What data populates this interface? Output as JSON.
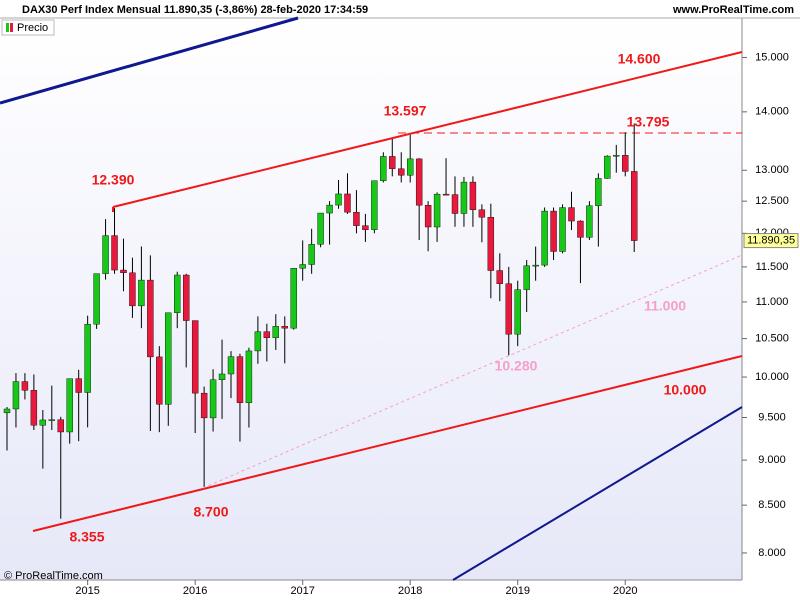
{
  "chart_data": {
    "type": "candlestick",
    "title": "DAX30 Perf Index Mensual 11.890,35 (-3,86%) 28-feb-2020 17:34:59",
    "source": "www.ProRealTime.com",
    "copyright": "© ProRealTime.com",
    "last_price_label": "11.890,35",
    "log_scale": true,
    "up_color": "#18c818",
    "down_color": "#e8193c",
    "categories": [
      null,
      null,
      null,
      null,
      null,
      null,
      null,
      null,
      null,
      "2015",
      null,
      null,
      null,
      null,
      null,
      null,
      null,
      null,
      null,
      null,
      null,
      "2016",
      null,
      null,
      null,
      null,
      null,
      null,
      null,
      null,
      null,
      null,
      null,
      "2017",
      null,
      null,
      null,
      null,
      null,
      null,
      null,
      null,
      null,
      null,
      null,
      "2018",
      null,
      null,
      null,
      null,
      null,
      null,
      null,
      null,
      null,
      null,
      null,
      "2019",
      null,
      null,
      null,
      null,
      null,
      null,
      null,
      null,
      null,
      null,
      null,
      "2020",
      null
    ],
    "series": [
      {
        "name": "Precio",
        "open": [
          9556,
          9603,
          9943,
          9833,
          9407,
          9470,
          9474,
          9327,
          9980,
          9806,
          10694,
          11402,
          11966,
          11454,
          11414,
          10945,
          11309,
          10259,
          9660,
          10850,
          11382,
          10743,
          9798,
          9495,
          9966,
          10039,
          10263,
          9680,
          10337,
          10593,
          10511,
          10665,
          10640,
          11481,
          11535,
          11834,
          12313,
          12438,
          12615,
          12325,
          12118,
          12056,
          12829,
          13230,
          13024,
          12918,
          13189,
          12436,
          12097,
          12612,
          12605,
          12306,
          12806,
          12364,
          12247,
          11447,
          11257,
          10559,
          11173,
          11516,
          11526,
          12344,
          11727,
          12399,
          12189,
          11939,
          12428,
          12866,
          13236,
          13249,
          12981
        ],
        "high": [
          9627,
          10050,
          10050,
          10033,
          9590,
          9891,
          9508,
          9980,
          10093,
          10810,
          11402,
          12219,
          12390,
          11920,
          11635,
          11802,
          11670,
          10400,
          10850,
          11430,
          11400,
          10743,
          9880,
          10100,
          10486,
          10335,
          10300,
          10380,
          10800,
          10700,
          10830,
          10800,
          11481,
          11893,
          12070,
          12313,
          12500,
          12840,
          12950,
          12676,
          12300,
          12830,
          13300,
          13525,
          13300,
          13597,
          13200,
          12500,
          12640,
          13200,
          12900,
          12890,
          12900,
          12450,
          12460,
          11700,
          11500,
          11300,
          11600,
          11800,
          12400,
          12400,
          12450,
          12650,
          12200,
          12500,
          12950,
          13250,
          13425,
          13640,
          13795
        ],
        "low": [
          9110,
          9380,
          9720,
          9350,
          8903,
          9350,
          8355,
          9190,
          9219,
          9382,
          10630,
          11316,
          11400,
          11150,
          10780,
          10640,
          9338,
          9325,
          9400,
          10640,
          10123,
          9314,
          8700,
          9332,
          9484,
          9736,
          9214,
          9380,
          10170,
          10200,
          10350,
          10175,
          10620,
          11300,
          11400,
          11790,
          11830,
          12380,
          12300,
          12000,
          11870,
          12000,
          12800,
          12900,
          12800,
          12800,
          11900,
          11730,
          11870,
          12600,
          12100,
          12100,
          12100,
          11865,
          11051,
          11010,
          10280,
          10400,
          10860,
          11300,
          11500,
          11600,
          11700,
          12050,
          11266,
          11900,
          11800,
          12860,
          12960,
          12900,
          11720
        ],
        "close": [
          9603,
          9943,
          9833,
          9407,
          9470,
          9474,
          9327,
          9980,
          9806,
          10694,
          11402,
          11966,
          11454,
          11414,
          10945,
          11309,
          10259,
          9660,
          10850,
          11382,
          10743,
          9798,
          9495,
          9966,
          10039,
          10263,
          9680,
          10337,
          10593,
          10511,
          10665,
          10640,
          11481,
          11535,
          11834,
          12313,
          12438,
          12615,
          12325,
          12118,
          12056,
          12829,
          13230,
          13024,
          12918,
          13189,
          12436,
          12097,
          12612,
          12605,
          12306,
          12806,
          12364,
          12247,
          11447,
          11257,
          10559,
          11173,
          11516,
          11526,
          12344,
          11727,
          12399,
          12189,
          11939,
          12428,
          12866,
          13236,
          13249,
          12981,
          11890.35
        ]
      }
    ],
    "ylim": [
      7730,
      15770
    ],
    "yticks": [
      {
        "value": 8000,
        "label": "8.000"
      },
      {
        "value": 8500,
        "label": "8.500"
      },
      {
        "value": 9000,
        "label": "9.000"
      },
      {
        "value": 9500,
        "label": "9.500"
      },
      {
        "value": 10000,
        "label": "10.000"
      },
      {
        "value": 10500,
        "label": "10.500"
      },
      {
        "value": 11000,
        "label": "11.000"
      },
      {
        "value": 11500,
        "label": "11.500"
      },
      {
        "value": 12000,
        "label": "12.000"
      },
      {
        "value": 12500,
        "label": "12.500"
      },
      {
        "value": 13000,
        "label": "13.000"
      },
      {
        "value": 14000,
        "label": "14.000"
      },
      {
        "value": 15000,
        "label": "15.000"
      }
    ],
    "annotations": [
      "14.600",
      "13.597",
      "12.390",
      "13.795",
      "11.000",
      "10.280",
      "10.000",
      "8.700",
      "8.355"
    ]
  }
}
